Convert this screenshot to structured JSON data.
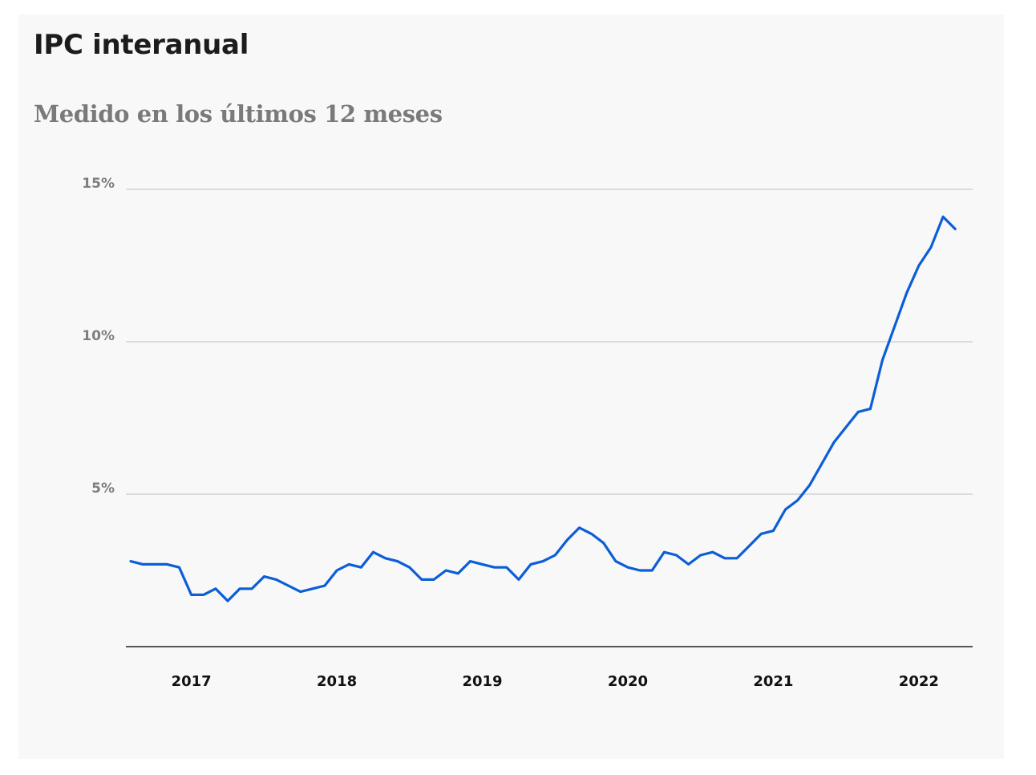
{
  "chart_data": {
    "type": "line",
    "title": "IPC interanual",
    "subtitle": "Medido en los últimos 12 meses",
    "xlabel": "",
    "ylabel": "",
    "ylim": [
      0,
      15
    ],
    "yticks": [
      {
        "value": 5,
        "label": "5%"
      },
      {
        "value": 10,
        "label": "10%"
      },
      {
        "value": 15,
        "label": "15%"
      }
    ],
    "xticks": [
      {
        "value": 2017.0,
        "label": "2017"
      },
      {
        "value": 2018.0,
        "label": "2018"
      },
      {
        "value": 2019.0,
        "label": "2019"
      },
      {
        "value": 2020.0,
        "label": "2020"
      },
      {
        "value": 2021.0,
        "label": "2021"
      },
      {
        "value": 2022.0,
        "label": "2022"
      }
    ],
    "grid": true,
    "color": "#0b5ed7",
    "series": [
      {
        "name": "IPC interanual",
        "x_start": 2016.5833,
        "x_step": 0.0833333,
        "values": [
          2.8,
          2.7,
          2.7,
          2.7,
          2.6,
          1.7,
          1.7,
          1.9,
          1.5,
          1.9,
          1.9,
          2.3,
          2.2,
          2.0,
          1.8,
          1.9,
          2.0,
          2.5,
          2.7,
          2.6,
          3.1,
          2.9,
          2.8,
          2.6,
          2.2,
          2.2,
          2.5,
          2.4,
          2.8,
          2.7,
          2.6,
          2.6,
          2.2,
          2.7,
          2.8,
          3.0,
          3.5,
          3.9,
          3.7,
          3.4,
          2.8,
          2.6,
          2.5,
          2.5,
          3.1,
          3.0,
          2.7,
          3.0,
          3.1,
          2.9,
          2.9,
          3.3,
          3.7,
          3.8,
          4.5,
          4.8,
          5.3,
          6.0,
          6.7,
          7.2,
          7.7,
          7.8,
          9.4,
          10.5,
          11.6,
          12.5,
          13.1,
          14.1,
          13.7
        ]
      }
    ]
  }
}
